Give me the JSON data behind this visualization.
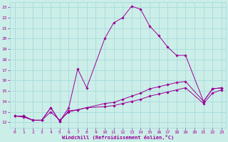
{
  "xlabel": "Windchill (Refroidissement éolien,°C)",
  "background_color": "#cceee8",
  "grid_color": "#aadddd",
  "line_color": "#990099",
  "xlim": [
    -0.5,
    23.5
  ],
  "ylim": [
    11.5,
    23.5
  ],
  "xticks": [
    0,
    1,
    2,
    3,
    4,
    5,
    6,
    7,
    8,
    9,
    10,
    11,
    12,
    13,
    14,
    15,
    16,
    17,
    18,
    19,
    20,
    21,
    22,
    23
  ],
  "yticks": [
    12,
    13,
    14,
    15,
    16,
    17,
    18,
    19,
    20,
    21,
    22,
    23
  ],
  "series": [
    {
      "x": [
        0,
        1,
        2,
        3,
        4,
        5,
        6,
        7,
        8,
        10,
        11,
        12,
        13,
        14,
        15,
        16,
        17,
        18,
        19,
        21,
        22,
        23
      ],
      "y": [
        12.6,
        12.6,
        12.2,
        12.2,
        13.4,
        12.1,
        13.4,
        17.1,
        15.3,
        20.0,
        21.5,
        22.0,
        23.1,
        22.8,
        21.2,
        20.3,
        19.2,
        18.4,
        18.4,
        14.0,
        15.2,
        15.3
      ]
    },
    {
      "x": [
        0,
        1,
        2,
        3,
        4,
        5,
        6,
        7,
        8,
        10,
        11,
        12,
        13,
        14,
        15,
        16,
        17,
        18,
        19,
        21,
        22,
        23
      ],
      "y": [
        12.6,
        12.6,
        12.2,
        12.2,
        13.4,
        12.1,
        13.1,
        13.2,
        13.4,
        13.8,
        13.9,
        14.2,
        14.5,
        14.8,
        15.2,
        15.4,
        15.6,
        15.8,
        15.9,
        14.0,
        15.2,
        15.3
      ]
    },
    {
      "x": [
        0,
        1,
        2,
        3,
        4,
        5,
        6,
        7,
        8,
        10,
        11,
        12,
        13,
        14,
        15,
        16,
        17,
        18,
        19,
        21,
        22,
        23
      ],
      "y": [
        12.6,
        12.5,
        12.2,
        12.2,
        13.0,
        12.2,
        13.0,
        13.2,
        13.4,
        13.5,
        13.6,
        13.8,
        14.0,
        14.2,
        14.5,
        14.7,
        14.9,
        15.1,
        15.3,
        13.8,
        14.8,
        15.1
      ]
    }
  ]
}
